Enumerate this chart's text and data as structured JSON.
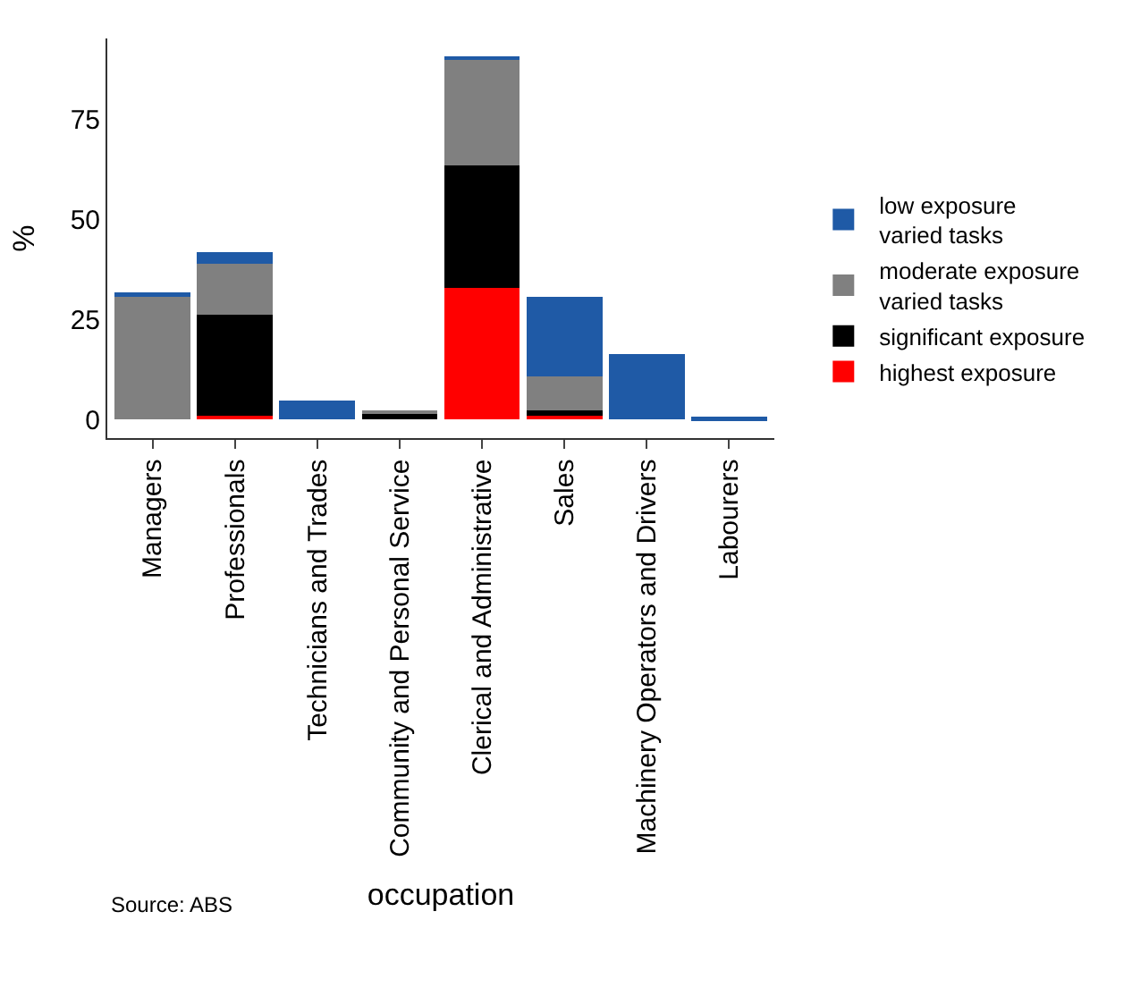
{
  "chart_data": {
    "type": "bar",
    "stacked": true,
    "xlabel": "occupation",
    "ylabel": "%",
    "categories": [
      "Managers",
      "Professionals",
      "Technicians and Trades",
      "Community and Personal Service",
      "Clerical and Administrative",
      "Sales",
      "Machinery Operators and Drivers",
      "Labourers"
    ],
    "series": [
      {
        "name": "highest exposure",
        "color": "#ff0000",
        "values": [
          0,
          0.9,
          0,
          0,
          32.9,
          0.9,
          0,
          0
        ]
      },
      {
        "name": "significant exposure",
        "color": "#000000",
        "values": [
          0,
          25.3,
          0,
          1.6,
          30.6,
          1.5,
          0,
          0
        ]
      },
      {
        "name": "moderate exposure\nvaried tasks",
        "color": "#808080",
        "values": [
          30.7,
          12.7,
          0,
          0.8,
          26.2,
          8.3,
          0,
          0
        ]
      },
      {
        "name": "low exposure\nvaried tasks",
        "color": "#1f5aa6",
        "values": [
          1.0,
          2.9,
          4.8,
          0,
          0.9,
          20.0,
          16.3,
          0.8
        ]
      }
    ],
    "ylim": [
      -4.5,
      95
    ],
    "yticks": [
      0,
      25,
      50,
      75
    ],
    "legend": "right",
    "annotations": [
      "Source: ABS"
    ]
  }
}
